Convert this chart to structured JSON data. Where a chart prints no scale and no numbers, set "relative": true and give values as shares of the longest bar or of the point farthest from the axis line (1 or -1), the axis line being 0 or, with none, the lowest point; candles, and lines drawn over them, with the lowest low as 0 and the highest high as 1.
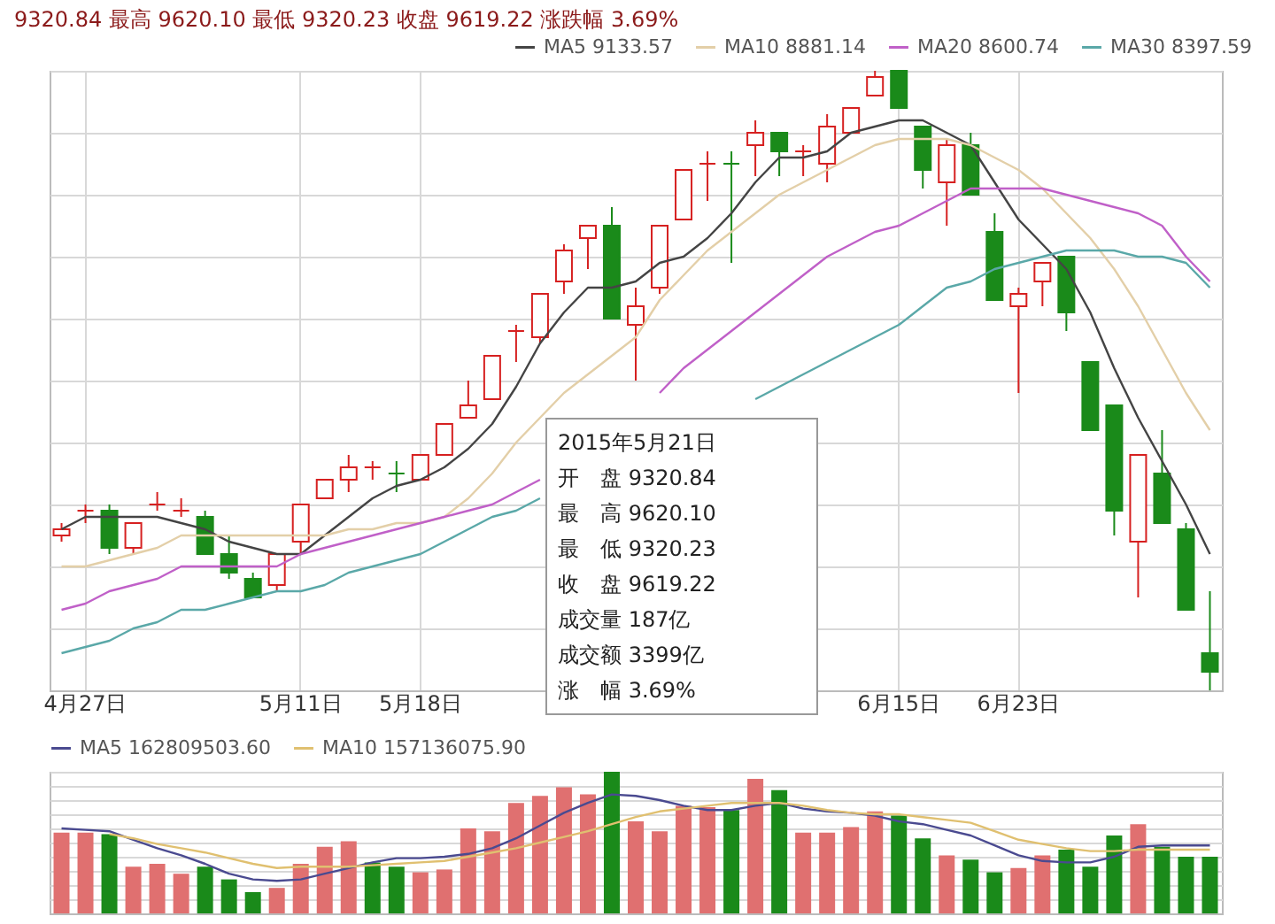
{
  "chart_data": [
    {
      "type": "candlestick",
      "title": "9320.84 最高 9620.10 最低 9320.23 收盘 9619.22 涨跌幅 3.69%",
      "relative": true,
      "grid": true,
      "legend": "top right",
      "categories": [
        null,
        "4月27日",
        null,
        null,
        null,
        null,
        null,
        null,
        null,
        null,
        "5月11日",
        null,
        null,
        null,
        null,
        "5月18日",
        null,
        null,
        null,
        null,
        null,
        null,
        null,
        null,
        null,
        null,
        null,
        null,
        null,
        null,
        null,
        null,
        null,
        null,
        null,
        "6月15日",
        null,
        null,
        null,
        null,
        "6月23日",
        null,
        null,
        null,
        null,
        null,
        null,
        null,
        null
      ],
      "ohlc": [
        [
          0.25,
          0.27,
          0.24,
          0.26
        ],
        [
          0.29,
          0.3,
          0.27,
          0.29
        ],
        [
          0.29,
          0.3,
          0.22,
          0.23
        ],
        [
          0.23,
          0.27,
          0.22,
          0.27
        ],
        [
          0.3,
          0.32,
          0.29,
          0.3
        ],
        [
          0.29,
          0.31,
          0.28,
          0.29
        ],
        [
          0.28,
          0.29,
          0.22,
          0.22
        ],
        [
          0.22,
          0.25,
          0.18,
          0.19
        ],
        [
          0.18,
          0.19,
          0.15,
          0.15
        ],
        [
          0.17,
          0.22,
          0.16,
          0.22
        ],
        [
          0.24,
          0.3,
          0.22,
          0.3
        ],
        [
          0.31,
          0.34,
          0.31,
          0.34
        ],
        [
          0.34,
          0.38,
          0.32,
          0.36
        ],
        [
          0.36,
          0.37,
          0.34,
          0.36
        ],
        [
          0.35,
          0.37,
          0.32,
          0.35
        ],
        [
          0.34,
          0.38,
          0.34,
          0.38
        ],
        [
          0.38,
          0.43,
          0.38,
          0.43
        ],
        [
          0.44,
          0.5,
          0.44,
          0.46
        ],
        [
          0.47,
          0.54,
          0.47,
          0.54
        ],
        [
          0.58,
          0.59,
          0.53,
          0.58
        ],
        [
          0.57,
          0.64,
          0.56,
          0.64
        ],
        [
          0.66,
          0.72,
          0.64,
          0.71
        ],
        [
          0.73,
          0.75,
          0.68,
          0.75
        ],
        [
          0.75,
          0.78,
          0.6,
          0.6
        ],
        [
          0.59,
          0.65,
          0.5,
          0.62
        ],
        [
          0.65,
          0.75,
          0.64,
          0.75
        ],
        [
          0.76,
          0.84,
          0.76,
          0.84
        ],
        [
          0.85,
          0.87,
          0.79,
          0.85
        ],
        [
          0.85,
          0.87,
          0.69,
          0.85
        ],
        [
          0.88,
          0.92,
          0.83,
          0.9
        ],
        [
          0.9,
          0.9,
          0.83,
          0.87
        ],
        [
          0.87,
          0.88,
          0.83,
          0.87
        ],
        [
          0.85,
          0.93,
          0.82,
          0.91
        ],
        [
          0.9,
          0.94,
          0.9,
          0.94
        ],
        [
          0.96,
          1.0,
          0.96,
          0.99
        ],
        [
          1.0,
          1.0,
          0.94,
          0.94
        ],
        [
          0.91,
          0.91,
          0.81,
          0.84
        ],
        [
          0.82,
          0.89,
          0.75,
          0.88
        ],
        [
          0.88,
          0.9,
          0.8,
          0.8
        ],
        [
          0.74,
          0.77,
          0.63,
          0.63
        ],
        [
          0.62,
          0.65,
          0.48,
          0.64
        ],
        [
          0.66,
          0.69,
          0.62,
          0.69
        ],
        [
          0.7,
          0.7,
          0.58,
          0.61
        ],
        [
          0.53,
          0.53,
          0.42,
          0.42
        ],
        [
          0.46,
          0.46,
          0.25,
          0.29
        ],
        [
          0.24,
          0.38,
          0.15,
          0.38
        ],
        [
          0.35,
          0.42,
          0.27,
          0.27
        ],
        [
          0.26,
          0.27,
          0.13,
          0.13
        ],
        [
          0.06,
          0.16,
          0.0,
          0.03
        ]
      ],
      "colors": [
        "#d62020",
        "#d62020",
        "#1a8a1a",
        "#d62020",
        "#d62020",
        "#d62020",
        "#1a8a1a",
        "#1a8a1a",
        "#1a8a1a",
        "#d62020",
        "#d62020",
        "#d62020",
        "#d62020",
        "#d62020",
        "#1a8a1a",
        "#d62020",
        "#d62020",
        "#d62020",
        "#d62020",
        "#d62020",
        "#d62020",
        "#d62020",
        "#d62020",
        "#1a8a1a",
        "#d62020",
        "#d62020",
        "#d62020",
        "#d62020",
        "#1a8a1a",
        "#d62020",
        "#1a8a1a",
        "#d62020",
        "#d62020",
        "#d62020",
        "#d62020",
        "#1a8a1a",
        "#1a8a1a",
        "#d62020",
        "#1a8a1a",
        "#1a8a1a",
        "#d62020",
        "#d62020",
        "#1a8a1a",
        "#1a8a1a",
        "#1a8a1a",
        "#d62020",
        "#1a8a1a",
        "#1a8a1a",
        "#1a8a1a"
      ],
      "series": [
        {
          "type": "line",
          "name": "MA5 9133.57",
          "color": "#444444",
          "values": [
            0.26,
            0.28,
            0.28,
            0.28,
            0.28,
            0.27,
            0.26,
            0.24,
            0.23,
            0.22,
            0.22,
            0.25,
            0.28,
            0.31,
            0.33,
            0.34,
            0.36,
            0.39,
            0.43,
            0.49,
            0.56,
            0.61,
            0.65,
            0.65,
            0.66,
            0.69,
            0.7,
            0.73,
            0.77,
            0.82,
            0.86,
            0.86,
            0.87,
            0.9,
            0.91,
            0.92,
            0.92,
            0.9,
            0.88,
            0.82,
            0.76,
            0.72,
            0.68,
            0.61,
            0.52,
            0.44,
            0.37,
            0.3,
            0.22
          ]
        },
        {
          "type": "line",
          "name": "MA10 8881.14",
          "color": "#e3cfa8",
          "values": [
            0.2,
            0.2,
            0.21,
            0.22,
            0.23,
            0.25,
            0.25,
            0.25,
            0.25,
            0.25,
            0.25,
            0.25,
            0.26,
            0.26,
            0.27,
            0.27,
            0.28,
            0.31,
            0.35,
            0.4,
            0.44,
            0.48,
            0.51,
            0.54,
            0.57,
            0.63,
            0.67,
            0.71,
            0.74,
            0.77,
            0.8,
            0.82,
            0.84,
            0.86,
            0.88,
            0.89,
            0.89,
            0.89,
            0.88,
            0.86,
            0.84,
            0.81,
            0.77,
            0.73,
            0.68,
            0.62,
            0.55,
            0.48,
            0.42
          ]
        },
        {
          "type": "line",
          "name": "MA20 8600.74",
          "color": "#c060c8",
          "values": [
            0.13,
            0.14,
            0.16,
            0.17,
            0.18,
            0.2,
            0.2,
            0.2,
            0.2,
            0.2,
            0.22,
            0.23,
            0.24,
            0.25,
            0.26,
            0.27,
            0.28,
            0.29,
            0.3,
            0.32,
            0.34,
            null,
            null,
            null,
            null,
            0.48,
            0.52,
            0.55,
            0.58,
            0.61,
            0.64,
            0.67,
            0.7,
            0.72,
            0.74,
            0.75,
            0.77,
            0.79,
            0.81,
            0.81,
            0.81,
            0.81,
            0.8,
            0.79,
            0.78,
            0.77,
            0.75,
            0.7,
            0.66
          ]
        },
        {
          "type": "line",
          "name": "MA30 8397.59",
          "color": "#5aa8a8",
          "values": [
            0.06,
            0.07,
            0.08,
            0.1,
            0.11,
            0.13,
            0.13,
            0.14,
            0.15,
            0.16,
            0.16,
            0.17,
            0.19,
            0.2,
            0.21,
            0.22,
            0.24,
            0.26,
            0.28,
            0.29,
            0.31,
            null,
            null,
            null,
            null,
            null,
            null,
            null,
            null,
            0.47,
            0.49,
            0.51,
            0.53,
            0.55,
            0.57,
            0.59,
            0.62,
            0.65,
            0.66,
            0.68,
            0.69,
            0.7,
            0.71,
            0.71,
            0.71,
            0.7,
            0.7,
            0.69,
            0.65
          ]
        }
      ],
      "annotations": [
        "2015年5月21日",
        "开　盘 9320.84",
        "最　高 9620.10",
        "最　低 9320.23",
        "收　盘 9619.22",
        "成交量 187亿",
        "成交额 3399亿",
        "涨　幅 3.69%"
      ]
    },
    {
      "type": "bar",
      "relative": true,
      "grid": "y",
      "legend": "top left",
      "categories": [
        null,
        null,
        null,
        null,
        null,
        null,
        null,
        null,
        null,
        null,
        null,
        null,
        null,
        null,
        null,
        null,
        null,
        null,
        null,
        null,
        null,
        null,
        null,
        null,
        null,
        null,
        null,
        null,
        null,
        null,
        null,
        null,
        null,
        null,
        null,
        null,
        null,
        null,
        null,
        null,
        null,
        null,
        null,
        null,
        null,
        null,
        null,
        null,
        null
      ],
      "series": [
        {
          "type": "bar",
          "values": [
            0.57,
            0.57,
            0.56,
            0.33,
            0.35,
            0.28,
            0.33,
            0.24,
            0.15,
            0.18,
            0.35,
            0.47,
            0.51,
            0.36,
            0.33,
            0.29,
            0.31,
            0.6,
            0.58,
            0.78,
            0.83,
            0.89,
            0.84,
            1.0,
            0.65,
            0.58,
            0.76,
            0.75,
            0.73,
            0.95,
            0.87,
            0.57,
            0.57,
            0.61,
            0.72,
            0.69,
            0.53,
            0.41,
            0.38,
            0.29,
            0.32,
            0.41,
            0.45,
            0.33,
            0.55,
            0.63,
            0.47,
            0.4,
            0.4
          ],
          "colors": [
            "#e07070",
            "#e07070",
            "#1a8a1a",
            "#e07070",
            "#e07070",
            "#e07070",
            "#1a8a1a",
            "#1a8a1a",
            "#1a8a1a",
            "#e07070",
            "#e07070",
            "#e07070",
            "#e07070",
            "#1a8a1a",
            "#1a8a1a",
            "#e07070",
            "#e07070",
            "#e07070",
            "#e07070",
            "#e07070",
            "#e07070",
            "#e07070",
            "#e07070",
            "#1a8a1a",
            "#e07070",
            "#e07070",
            "#e07070",
            "#e07070",
            "#1a8a1a",
            "#e07070",
            "#1a8a1a",
            "#e07070",
            "#e07070",
            "#e07070",
            "#e07070",
            "#1a8a1a",
            "#1a8a1a",
            "#e07070",
            "#1a8a1a",
            "#1a8a1a",
            "#e07070",
            "#e07070",
            "#1a8a1a",
            "#1a8a1a",
            "#1a8a1a",
            "#e07070",
            "#1a8a1a",
            "#1a8a1a",
            "#1a8a1a"
          ]
        },
        {
          "type": "line",
          "name": "MA5 162809503.60",
          "color": "#4a4a90",
          "values": [
            0.6,
            0.59,
            0.58,
            0.52,
            0.46,
            0.41,
            0.35,
            0.28,
            0.24,
            0.23,
            0.24,
            0.28,
            0.32,
            0.36,
            0.39,
            0.39,
            0.4,
            0.42,
            0.46,
            0.53,
            0.62,
            0.71,
            0.78,
            0.84,
            0.83,
            0.8,
            0.76,
            0.73,
            0.73,
            0.76,
            0.78,
            0.74,
            0.72,
            0.71,
            0.69,
            0.65,
            0.63,
            0.59,
            0.55,
            0.48,
            0.41,
            0.37,
            0.36,
            0.36,
            0.4,
            0.47,
            0.48,
            0.48,
            0.48
          ]
        },
        {
          "type": "line",
          "name": "MA10 157136075.90",
          "color": "#e0c070",
          "values": [
            null,
            null,
            0.56,
            0.53,
            0.49,
            0.46,
            0.43,
            0.39,
            0.35,
            0.32,
            0.33,
            0.33,
            0.33,
            0.34,
            0.35,
            0.36,
            0.37,
            0.4,
            0.43,
            0.46,
            0.5,
            0.54,
            0.58,
            0.63,
            0.68,
            0.72,
            0.74,
            0.76,
            0.78,
            0.78,
            0.78,
            0.76,
            0.73,
            0.71,
            0.7,
            0.7,
            0.68,
            0.66,
            0.64,
            0.58,
            0.52,
            0.49,
            0.46,
            0.44,
            0.44,
            0.45,
            0.45,
            0.45,
            0.45
          ]
        }
      ]
    }
  ]
}
